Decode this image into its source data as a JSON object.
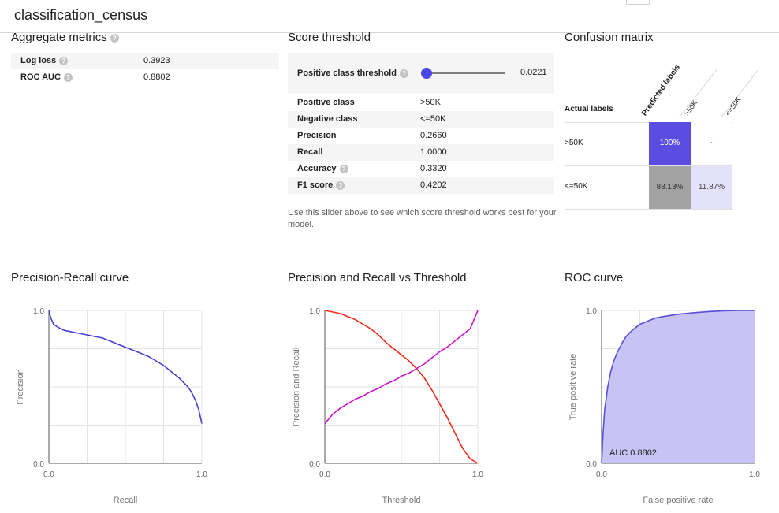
{
  "app": {
    "title": "classification_census"
  },
  "aggregate": {
    "title": "Aggregate metrics",
    "rows": [
      {
        "label": "Log loss",
        "value": "0.3923"
      },
      {
        "label": "ROC AUC",
        "value": "0.8802"
      }
    ]
  },
  "threshold": {
    "title": "Score threshold",
    "slider_label": "Positive class threshold",
    "slider_value": "0.0221",
    "slider_fraction": 0.0221,
    "rows": [
      {
        "label": "Positive class",
        "value": ">50K",
        "help": false
      },
      {
        "label": "Negative class",
        "value": "<=50K",
        "help": false
      },
      {
        "label": "Precision",
        "value": "0.2660",
        "help": false
      },
      {
        "label": "Recall",
        "value": "1.0000",
        "help": false
      },
      {
        "label": "Accuracy",
        "value": "0.3320",
        "help": true
      },
      {
        "label": "F1 score",
        "value": "0.4202",
        "help": true
      }
    ],
    "note": "Use this slider above to see which score threshold works best for your model."
  },
  "confusion": {
    "title": "Confusion matrix",
    "actual_label": "Actual labels",
    "predicted_label": "Predicted labels",
    "columns": [
      ">50K",
      "<=50K"
    ],
    "rows": [
      {
        "label": ">50K",
        "cells": [
          "100%",
          "-"
        ]
      },
      {
        "label": "<=50K",
        "cells": [
          "88.13%",
          "11.87%"
        ]
      }
    ],
    "colors": {
      "high": "#5b4de0",
      "mid": "#a3a3a3",
      "low": "#e4e1fa"
    }
  },
  "charts": {
    "pr": {
      "title": "Precision-Recall curve"
    },
    "pvt": {
      "title": "Precision and Recall vs Threshold"
    },
    "roc": {
      "title": "ROC curve"
    }
  },
  "chart_data": [
    {
      "type": "line",
      "title": "Precision-Recall curve",
      "xlabel": "Recall",
      "ylabel": "Precision",
      "xlim": [
        0,
        1
      ],
      "ylim": [
        0,
        1
      ],
      "xticks": [
        "0.0",
        "1.0"
      ],
      "yticks": [
        "0.0",
        "1.0"
      ],
      "series": [
        {
          "name": "precision",
          "color": "#4a3fd6",
          "x": [
            0,
            0.01,
            0.03,
            0.06,
            0.1,
            0.15,
            0.2,
            0.25,
            0.3,
            0.35,
            0.4,
            0.45,
            0.5,
            0.55,
            0.6,
            0.65,
            0.7,
            0.75,
            0.8,
            0.85,
            0.9,
            0.93,
            0.96,
            0.98,
            1.0
          ],
          "y": [
            1.0,
            0.96,
            0.91,
            0.89,
            0.87,
            0.86,
            0.85,
            0.84,
            0.83,
            0.82,
            0.8,
            0.78,
            0.76,
            0.74,
            0.72,
            0.7,
            0.67,
            0.64,
            0.6,
            0.56,
            0.51,
            0.47,
            0.41,
            0.35,
            0.26
          ]
        }
      ]
    },
    {
      "type": "line",
      "title": "Precision and Recall vs Threshold",
      "xlabel": "Threshold",
      "ylabel": "Precision and Recall",
      "xlim": [
        0,
        1
      ],
      "ylim": [
        0,
        1
      ],
      "xticks": [
        "0.0",
        "1.0"
      ],
      "yticks": [
        "0.0",
        "1.0"
      ],
      "series": [
        {
          "name": "Recall",
          "color": "#ee2b1a",
          "x": [
            0,
            0.05,
            0.1,
            0.15,
            0.2,
            0.25,
            0.3,
            0.35,
            0.4,
            0.45,
            0.5,
            0.55,
            0.6,
            0.65,
            0.7,
            0.75,
            0.8,
            0.85,
            0.9,
            0.95,
            1.0
          ],
          "y": [
            1.0,
            0.99,
            0.98,
            0.96,
            0.94,
            0.91,
            0.88,
            0.84,
            0.79,
            0.75,
            0.71,
            0.67,
            0.62,
            0.56,
            0.48,
            0.39,
            0.3,
            0.2,
            0.1,
            0.03,
            0.0
          ]
        },
        {
          "name": "Precision",
          "color": "#c716c9",
          "x": [
            0,
            0.05,
            0.1,
            0.15,
            0.2,
            0.25,
            0.3,
            0.35,
            0.4,
            0.45,
            0.5,
            0.55,
            0.6,
            0.65,
            0.7,
            0.75,
            0.8,
            0.85,
            0.9,
            0.95,
            1.0
          ],
          "y": [
            0.26,
            0.32,
            0.36,
            0.39,
            0.42,
            0.44,
            0.47,
            0.49,
            0.52,
            0.54,
            0.57,
            0.59,
            0.62,
            0.65,
            0.69,
            0.73,
            0.76,
            0.8,
            0.84,
            0.88,
            1.0
          ]
        }
      ]
    },
    {
      "type": "area",
      "title": "ROC curve",
      "xlabel": "False positive rate",
      "ylabel": "True positive rate",
      "xlim": [
        0,
        1
      ],
      "ylim": [
        0,
        1
      ],
      "xticks": [
        "0.0",
        "1.0"
      ],
      "yticks": [
        "0.0",
        "1.0"
      ],
      "annotation": "AUC 0.8802",
      "series": [
        {
          "name": "ROC",
          "color": "#5a4fd6",
          "fill": "#c7c3f4",
          "x": [
            0,
            0.01,
            0.02,
            0.04,
            0.06,
            0.08,
            0.1,
            0.13,
            0.16,
            0.2,
            0.25,
            0.3,
            0.35,
            0.4,
            0.5,
            0.6,
            0.7,
            0.8,
            0.9,
            1.0
          ],
          "y": [
            0,
            0.2,
            0.35,
            0.5,
            0.6,
            0.67,
            0.72,
            0.78,
            0.83,
            0.87,
            0.91,
            0.93,
            0.95,
            0.96,
            0.975,
            0.985,
            0.993,
            0.998,
            1.0,
            1.0
          ]
        }
      ]
    }
  ]
}
